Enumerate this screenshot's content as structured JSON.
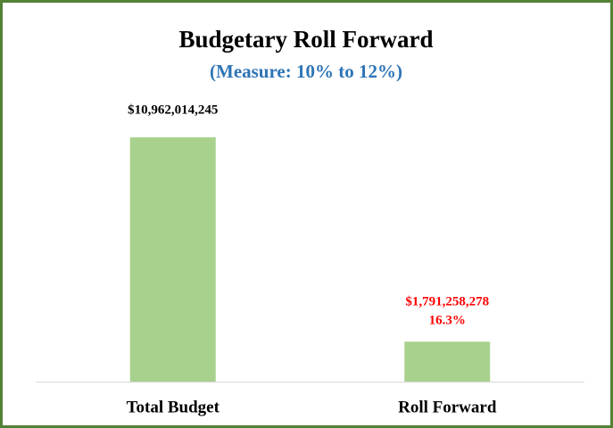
{
  "chart_data": {
    "type": "bar",
    "title": "Budgetary Roll Forward",
    "subtitle": "(Measure: 10% to 12%)",
    "categories": [
      "Total Budget",
      "Roll Forward"
    ],
    "values": [
      10962014245,
      1791258278
    ],
    "value_labels": [
      "$10,962,014,245",
      "$1,791,258,278"
    ],
    "value_notes": [
      null,
      "16.3%"
    ],
    "label_colors": [
      "#000000",
      "#ff0000"
    ],
    "color": "#a9d18e",
    "grid": false
  }
}
